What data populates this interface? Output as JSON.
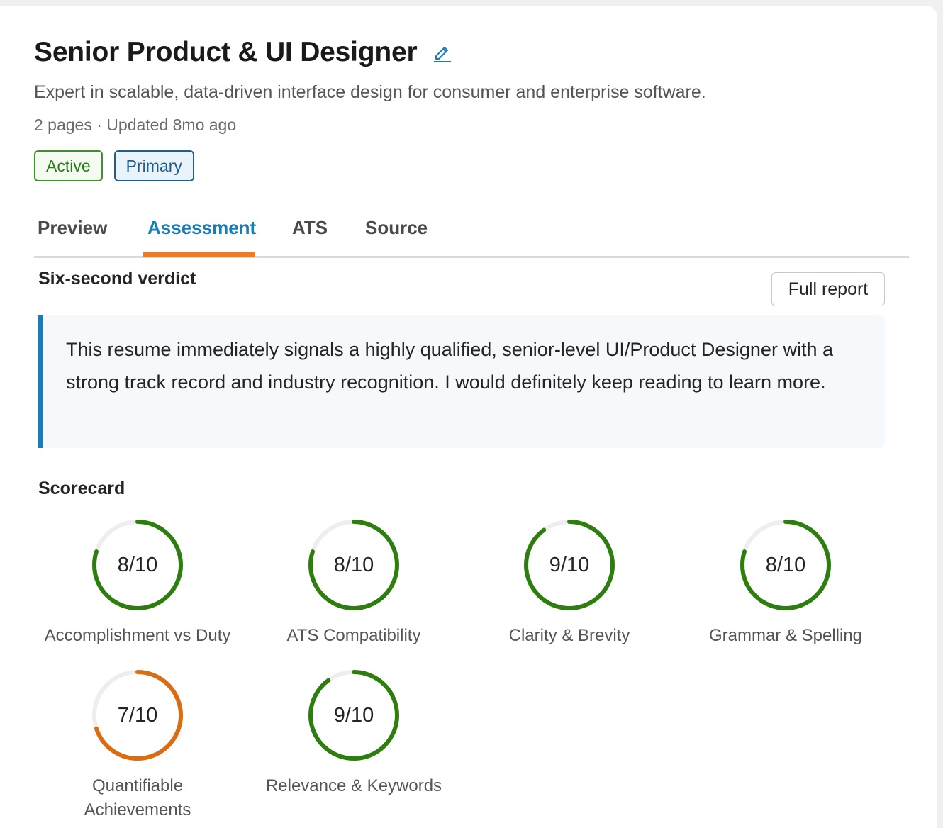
{
  "header": {
    "title": "Senior Product & UI Designer",
    "subtitle": "Expert in scalable, data-driven interface design for consumer and enterprise software.",
    "meta": "2 pages · Updated 8mo ago",
    "badges": [
      {
        "label": "Active",
        "color": "#3f8f2a"
      },
      {
        "label": "Primary",
        "color": "#1f5f8b"
      }
    ],
    "edit_icon": "pencil-icon"
  },
  "tabs": [
    {
      "label": "Preview",
      "active": false
    },
    {
      "label": "Assessment",
      "active": true
    },
    {
      "label": "ATS",
      "active": false
    },
    {
      "label": "Source",
      "active": false
    }
  ],
  "verdict": {
    "title": "Six-second verdict",
    "full_report_label": "Full report",
    "text": "This resume immediately signals a highly qualified, senior-level UI/Product Designer with a strong track record and industry recognition. I would definitely keep reading to learn more."
  },
  "scorecard": {
    "title": "Scorecard",
    "max": 10,
    "colors": {
      "high": "#2e7d0f",
      "medium": "#d96d12",
      "track": "#eeeeee"
    },
    "items": [
      {
        "label": "Accomplishment vs Duty",
        "score": 8,
        "display": "8/10",
        "level": "high"
      },
      {
        "label": "ATS Compatibility",
        "score": 8,
        "display": "8/10",
        "level": "high"
      },
      {
        "label": "Clarity & Brevity",
        "score": 9,
        "display": "9/10",
        "level": "high"
      },
      {
        "label": "Grammar & Spelling",
        "score": 8,
        "display": "8/10",
        "level": "high"
      },
      {
        "label": "Quantifiable Achievements",
        "score": 7,
        "display": "7/10",
        "level": "medium"
      },
      {
        "label": "Relevance & Keywords",
        "score": 9,
        "display": "9/10",
        "level": "high"
      }
    ]
  }
}
